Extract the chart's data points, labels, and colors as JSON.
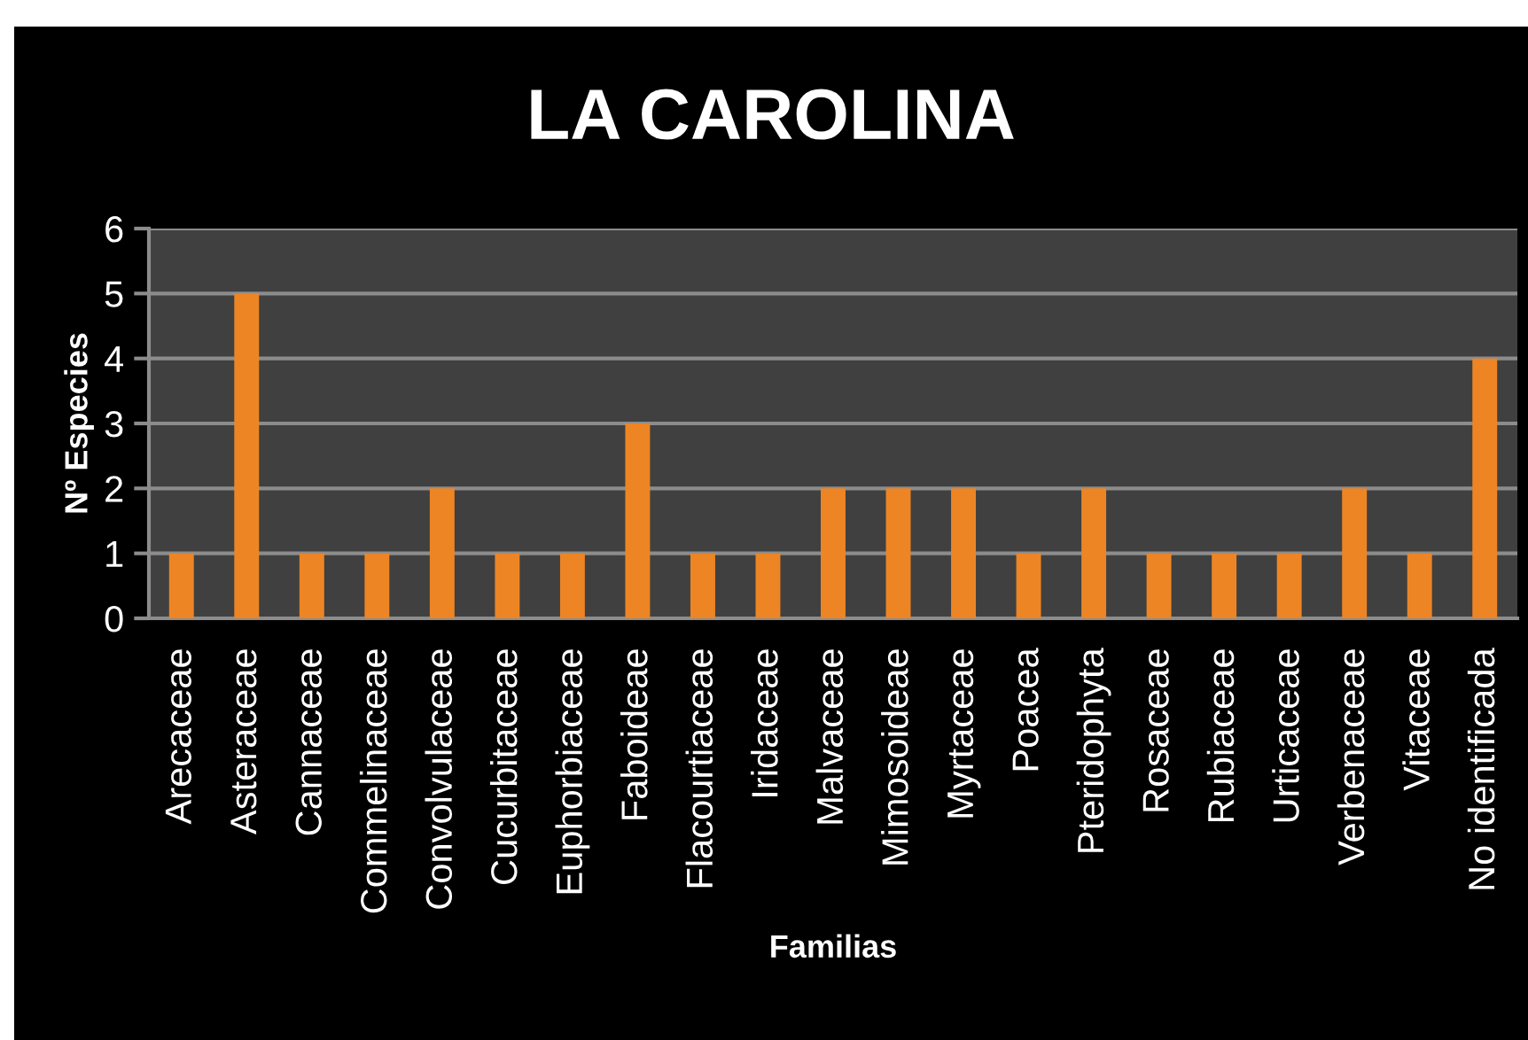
{
  "chart_data": {
    "type": "bar",
    "title": "LA CAROLINA",
    "xlabel": "Familias",
    "ylabel": "Nº Especies",
    "categories": [
      "Arecaceae",
      "Asteraceae",
      "Cannaceae",
      "Commelinaceae",
      "Convolvulaceae",
      "Cucurbitaceae",
      "Euphorbiaceae",
      "Faboideae",
      "Flacourtiaceae",
      "Iridaceae",
      "Malvaceae",
      "Mimosoideae",
      "Myrtaceae",
      "Poacea",
      "Pteridophyta",
      "Rosaceae",
      "Rubiaceae",
      "Urticaceae",
      "Verbenaceae",
      "Vitaceae",
      "No identificada"
    ],
    "values": [
      1,
      5,
      1,
      1,
      2,
      1,
      1,
      3,
      1,
      1,
      2,
      2,
      2,
      1,
      2,
      1,
      1,
      1,
      2,
      1,
      4
    ],
    "color": "#ed8525",
    "ylim": [
      0,
      6
    ],
    "yticks": [
      0,
      1,
      2,
      3,
      4,
      5,
      6
    ],
    "grid": "y"
  }
}
